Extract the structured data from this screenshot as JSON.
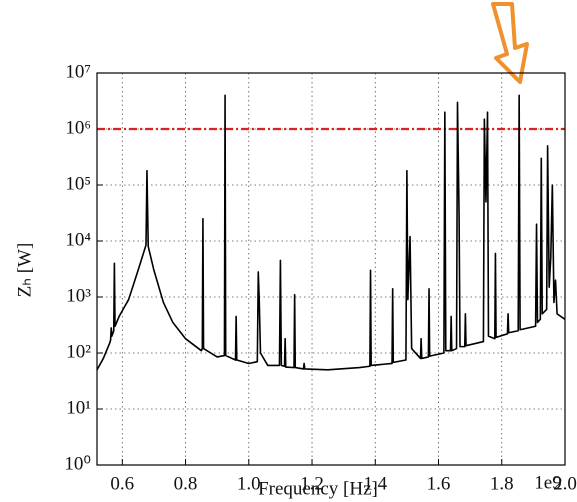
{
  "chart_data": {
    "type": "line",
    "x_label": "Frequency [Hz]",
    "y_label": "Zₕ [W]",
    "x_offset_label": "1e9",
    "log_y": true,
    "grid": true,
    "xlim": [
      0.52,
      2.0
    ],
    "ylim": [
      1,
      10000000
    ],
    "xticks": [
      0.6,
      0.8,
      {
        "value": 1,
        "label": "1.0"
      },
      1.2,
      1.4,
      1.6,
      1.8,
      {
        "value": 2,
        "label": "2.0"
      }
    ],
    "yticks": [
      {
        "value": 1,
        "label": "10⁰"
      },
      {
        "value": 10,
        "label": "10¹"
      },
      {
        "value": 100,
        "label": "10²"
      },
      {
        "value": 1000,
        "label": "10³"
      },
      {
        "value": 10000,
        "label": "10⁴"
      },
      {
        "value": 100000,
        "label": "10⁵"
      },
      {
        "value": 1000000,
        "label": "10⁶"
      },
      {
        "value": 10000000,
        "label": "10⁷"
      }
    ],
    "reference_line": {
      "value": 1000000,
      "color": "#e02020"
    },
    "series": [
      {
        "color": "#000000",
        "x": [
          0.52,
          0.54,
          0.56,
          0.563,
          0.565,
          0.567,
          0.573,
          0.575,
          0.577,
          0.59,
          0.62,
          0.65,
          0.675,
          0.678,
          0.682,
          0.7,
          0.73,
          0.76,
          0.8,
          0.85,
          0.853,
          0.855,
          0.857,
          0.9,
          0.923,
          0.925,
          0.927,
          0.958,
          0.96,
          0.962,
          1.0,
          1.027,
          1.03,
          1.033,
          1.037,
          1.06,
          1.097,
          1.1,
          1.103,
          1.113,
          1.115,
          1.117,
          1.143,
          1.145,
          1.147,
          1.173,
          1.175,
          1.177,
          1.25,
          1.35,
          1.383,
          1.385,
          1.387,
          1.453,
          1.455,
          1.457,
          1.497,
          1.5,
          1.503,
          1.51,
          1.515,
          1.543,
          1.545,
          1.547,
          1.568,
          1.57,
          1.572,
          1.617,
          1.62,
          1.623,
          1.638,
          1.64,
          1.642,
          1.657,
          1.66,
          1.665,
          1.668,
          1.683,
          1.685,
          1.687,
          1.742,
          1.745,
          1.75,
          1.755,
          1.758,
          1.778,
          1.78,
          1.782,
          1.818,
          1.82,
          1.822,
          1.852,
          1.855,
          1.858,
          1.907,
          1.91,
          1.913,
          1.922,
          1.925,
          1.928,
          1.942,
          1.945,
          1.95,
          1.955,
          1.96,
          1.965,
          1.97,
          1.975,
          2.0
        ],
        "values": [
          50,
          80,
          150,
          170,
          280,
          200,
          250,
          4000,
          300,
          450,
          900,
          3000,
          8500,
          180000,
          8000,
          3000,
          800,
          350,
          180,
          110,
          120,
          25000,
          120,
          85,
          90,
          4000000,
          90,
          75,
          450,
          75,
          65,
          70,
          2800,
          900,
          100,
          60,
          60,
          4500,
          60,
          58,
          180,
          56,
          55,
          1100,
          55,
          52,
          65,
          52,
          50,
          55,
          58,
          3000,
          60,
          65,
          1400,
          68,
          75,
          180000,
          900,
          12000,
          120,
          80,
          180,
          80,
          85,
          1400,
          88,
          100,
          2000000,
          110,
          110,
          450,
          110,
          120,
          3000000,
          30000,
          130,
          130,
          500,
          135,
          160,
          1500000,
          50000,
          2000000,
          200,
          180,
          6000,
          190,
          220,
          500,
          230,
          250,
          4000000,
          260,
          300,
          20000,
          350,
          400,
          300000,
          500,
          600,
          500000,
          1500,
          5000,
          100000,
          800,
          2000,
          500,
          400
        ]
      }
    ]
  }
}
